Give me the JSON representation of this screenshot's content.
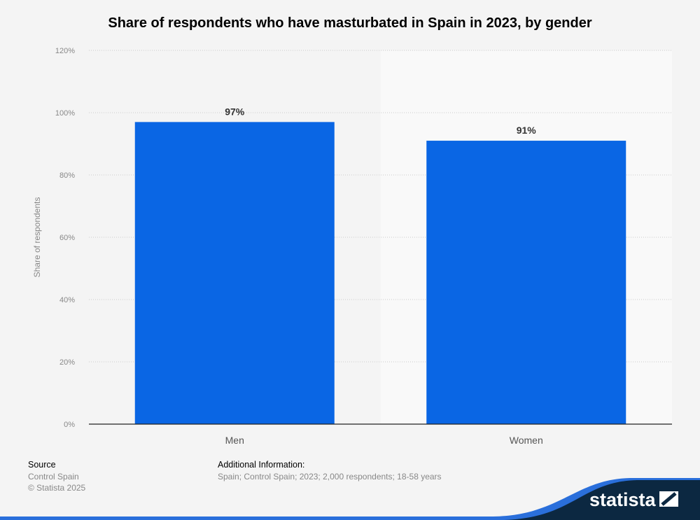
{
  "title": "Share of respondents who have masturbated in Spain in 2023, by gender",
  "chart_data": {
    "type": "bar",
    "title": "Share of respondents who have masturbated in Spain in 2023, by gender",
    "categories": [
      "Men",
      "Women"
    ],
    "values": [
      97,
      91
    ],
    "data_labels": [
      "97%",
      "91%"
    ],
    "xlabel": "",
    "ylabel": "Share of respondents",
    "ylim": [
      0,
      120
    ],
    "yticks": [
      0,
      20,
      40,
      60,
      80,
      100,
      120
    ],
    "ytick_labels": [
      "0%",
      "20%",
      "40%",
      "60%",
      "80%",
      "100%",
      "120%"
    ],
    "grid": true,
    "bar_color": "#0a66e4"
  },
  "footer": {
    "source_heading": "Source",
    "source": "Control Spain",
    "copyright": "© Statista 2025",
    "info_heading": "Additional Information:",
    "info": "Spain; Control Spain; 2023; 2,000 respondents; 18-58 years",
    "logo": "statista"
  }
}
